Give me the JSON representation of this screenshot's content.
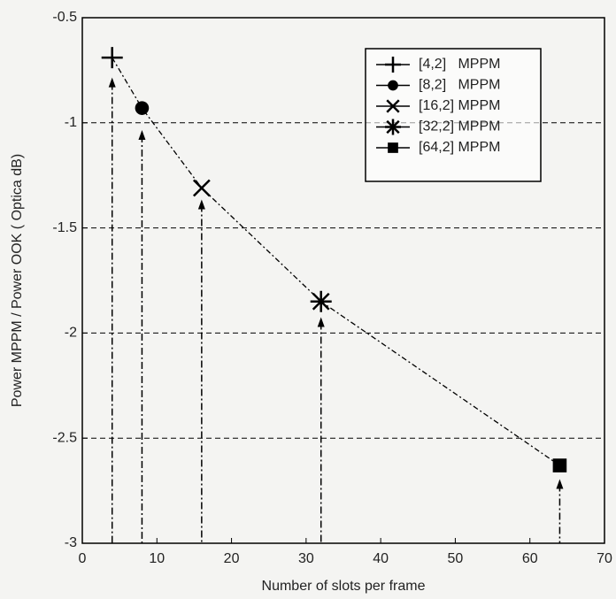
{
  "chart_data": {
    "type": "scatter",
    "xlabel": "Number of slots per frame",
    "ylabel": "Power MPPM / Power OOK ( Optica dB)",
    "xlim": [
      0,
      70
    ],
    "xticks": [
      0,
      10,
      20,
      30,
      40,
      50,
      60,
      70
    ],
    "ylim": [
      -3,
      -0.5
    ],
    "yticks": [
      -3,
      -2.5,
      -2,
      -1.5,
      -1,
      -0.5
    ],
    "grid": true,
    "legend": "upper right",
    "color": "#000000",
    "series": [
      {
        "name": "[4,2]   MPPM",
        "marker": "plus",
        "x": [
          4
        ],
        "values": [
          -0.69
        ]
      },
      {
        "name": "[8,2]   MPPM",
        "marker": "circle",
        "x": [
          8
        ],
        "values": [
          -0.93
        ]
      },
      {
        "name": "[16,2] MPPM",
        "marker": "x",
        "x": [
          16
        ],
        "values": [
          -1.31
        ]
      },
      {
        "name": "[32,2] MPPM",
        "marker": "asterisk",
        "x": [
          32
        ],
        "values": [
          -1.85
        ]
      },
      {
        "name": "[64,2] MPPM",
        "marker": "square",
        "x": [
          64
        ],
        "values": [
          -2.63
        ]
      }
    ],
    "triangles": {
      "x": [
        4,
        8,
        16,
        32,
        64
      ],
      "values": [
        -0.81,
        -1.06,
        -1.39,
        -1.95,
        -2.72
      ]
    }
  }
}
